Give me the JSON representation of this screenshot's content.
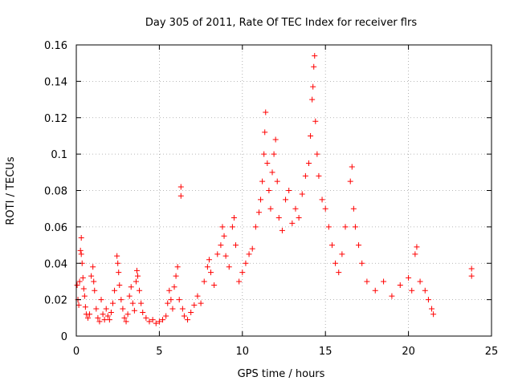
{
  "chart_data": {
    "type": "scatter",
    "title": "Day 305 of 2011, Rate Of TEC Index for receiver flrs",
    "xlabel": "GPS time / hours",
    "ylabel": "ROTI / TECUs",
    "xlim": [
      0,
      25
    ],
    "ylim": [
      0,
      0.16
    ],
    "grid": true,
    "marker": "+",
    "color": "#ff0000",
    "x_ticks": [
      0,
      5,
      10,
      15,
      20,
      25
    ],
    "x_tick_labels": [
      "0",
      "5",
      "10",
      "15",
      "20",
      "25"
    ],
    "y_ticks": [
      0,
      0.02,
      0.04,
      0.06,
      0.08,
      0.1,
      0.12,
      0.14,
      0.16
    ],
    "y_tick_labels": [
      "0",
      "0.02",
      "0.04",
      "0.06",
      "0.08",
      "0.1",
      "0.12",
      "0.14",
      "0.16"
    ],
    "series": [
      {
        "name": "ROTI",
        "points": [
          [
            0.05,
            0.028
          ],
          [
            0.1,
            0.02
          ],
          [
            0.15,
            0.017
          ],
          [
            0.2,
            0.03
          ],
          [
            0.25,
            0.047
          ],
          [
            0.3,
            0.054
          ],
          [
            0.3,
            0.045
          ],
          [
            0.35,
            0.04
          ],
          [
            0.4,
            0.032
          ],
          [
            0.45,
            0.026
          ],
          [
            0.5,
            0.022
          ],
          [
            0.55,
            0.016
          ],
          [
            0.6,
            0.012
          ],
          [
            0.7,
            0.01
          ],
          [
            0.8,
            0.012
          ],
          [
            0.9,
            0.033
          ],
          [
            1.0,
            0.038
          ],
          [
            1.05,
            0.03
          ],
          [
            1.1,
            0.025
          ],
          [
            1.2,
            0.015
          ],
          [
            1.3,
            0.01
          ],
          [
            1.4,
            0.008
          ],
          [
            1.5,
            0.02
          ],
          [
            1.6,
            0.012
          ],
          [
            1.7,
            0.009
          ],
          [
            1.8,
            0.015
          ],
          [
            1.9,
            0.011
          ],
          [
            2.0,
            0.009
          ],
          [
            2.1,
            0.013
          ],
          [
            2.2,
            0.018
          ],
          [
            2.3,
            0.025
          ],
          [
            2.45,
            0.044
          ],
          [
            2.5,
            0.04
          ],
          [
            2.55,
            0.035
          ],
          [
            2.6,
            0.028
          ],
          [
            2.7,
            0.02
          ],
          [
            2.8,
            0.015
          ],
          [
            2.9,
            0.01
          ],
          [
            3.0,
            0.008
          ],
          [
            3.1,
            0.012
          ],
          [
            3.2,
            0.022
          ],
          [
            3.3,
            0.027
          ],
          [
            3.4,
            0.018
          ],
          [
            3.5,
            0.014
          ],
          [
            3.6,
            0.03
          ],
          [
            3.65,
            0.036
          ],
          [
            3.7,
            0.033
          ],
          [
            3.8,
            0.025
          ],
          [
            3.9,
            0.018
          ],
          [
            4.0,
            0.013
          ],
          [
            4.2,
            0.01
          ],
          [
            4.4,
            0.008
          ],
          [
            4.6,
            0.009
          ],
          [
            4.8,
            0.007
          ],
          [
            5.0,
            0.008
          ],
          [
            5.2,
            0.009
          ],
          [
            5.4,
            0.011
          ],
          [
            5.5,
            0.018
          ],
          [
            5.6,
            0.025
          ],
          [
            5.7,
            0.02
          ],
          [
            5.8,
            0.015
          ],
          [
            5.9,
            0.027
          ],
          [
            6.0,
            0.033
          ],
          [
            6.1,
            0.038
          ],
          [
            6.2,
            0.02
          ],
          [
            6.3,
            0.077
          ],
          [
            6.3,
            0.082
          ],
          [
            6.4,
            0.015
          ],
          [
            6.5,
            0.011
          ],
          [
            6.7,
            0.009
          ],
          [
            6.9,
            0.013
          ],
          [
            7.1,
            0.017
          ],
          [
            7.3,
            0.022
          ],
          [
            7.5,
            0.018
          ],
          [
            7.7,
            0.03
          ],
          [
            7.9,
            0.038
          ],
          [
            8.0,
            0.042
          ],
          [
            8.1,
            0.035
          ],
          [
            8.3,
            0.028
          ],
          [
            8.5,
            0.045
          ],
          [
            8.7,
            0.05
          ],
          [
            8.8,
            0.06
          ],
          [
            8.9,
            0.055
          ],
          [
            9.0,
            0.044
          ],
          [
            9.2,
            0.038
          ],
          [
            9.4,
            0.06
          ],
          [
            9.5,
            0.065
          ],
          [
            9.6,
            0.05
          ],
          [
            9.8,
            0.03
          ],
          [
            10.0,
            0.035
          ],
          [
            10.2,
            0.04
          ],
          [
            10.4,
            0.045
          ],
          [
            10.6,
            0.048
          ],
          [
            10.8,
            0.06
          ],
          [
            11.0,
            0.068
          ],
          [
            11.1,
            0.075
          ],
          [
            11.2,
            0.085
          ],
          [
            11.3,
            0.1
          ],
          [
            11.35,
            0.112
          ],
          [
            11.4,
            0.123
          ],
          [
            11.5,
            0.095
          ],
          [
            11.6,
            0.08
          ],
          [
            11.7,
            0.07
          ],
          [
            11.8,
            0.09
          ],
          [
            11.9,
            0.1
          ],
          [
            12.0,
            0.108
          ],
          [
            12.1,
            0.085
          ],
          [
            12.2,
            0.065
          ],
          [
            12.4,
            0.058
          ],
          [
            12.6,
            0.075
          ],
          [
            12.8,
            0.08
          ],
          [
            13.0,
            0.062
          ],
          [
            13.2,
            0.07
          ],
          [
            13.4,
            0.065
          ],
          [
            13.6,
            0.078
          ],
          [
            13.8,
            0.088
          ],
          [
            14.0,
            0.095
          ],
          [
            14.1,
            0.11
          ],
          [
            14.2,
            0.13
          ],
          [
            14.25,
            0.137
          ],
          [
            14.3,
            0.148
          ],
          [
            14.35,
            0.154
          ],
          [
            14.4,
            0.118
          ],
          [
            14.5,
            0.1
          ],
          [
            14.6,
            0.088
          ],
          [
            14.8,
            0.075
          ],
          [
            15.0,
            0.07
          ],
          [
            15.2,
            0.06
          ],
          [
            15.4,
            0.05
          ],
          [
            15.6,
            0.04
          ],
          [
            15.8,
            0.035
          ],
          [
            16.0,
            0.045
          ],
          [
            16.2,
            0.06
          ],
          [
            16.5,
            0.085
          ],
          [
            16.6,
            0.093
          ],
          [
            16.7,
            0.07
          ],
          [
            16.8,
            0.06
          ],
          [
            17.0,
            0.05
          ],
          [
            17.2,
            0.04
          ],
          [
            17.5,
            0.03
          ],
          [
            18.0,
            0.025
          ],
          [
            18.5,
            0.03
          ],
          [
            19.0,
            0.022
          ],
          [
            19.5,
            0.028
          ],
          [
            20.0,
            0.032
          ],
          [
            20.2,
            0.025
          ],
          [
            20.4,
            0.045
          ],
          [
            20.5,
            0.049
          ],
          [
            20.7,
            0.03
          ],
          [
            21.0,
            0.025
          ],
          [
            21.2,
            0.02
          ],
          [
            21.4,
            0.015
          ],
          [
            21.5,
            0.012
          ],
          [
            23.8,
            0.033
          ],
          [
            23.8,
            0.037
          ]
        ]
      }
    ]
  }
}
